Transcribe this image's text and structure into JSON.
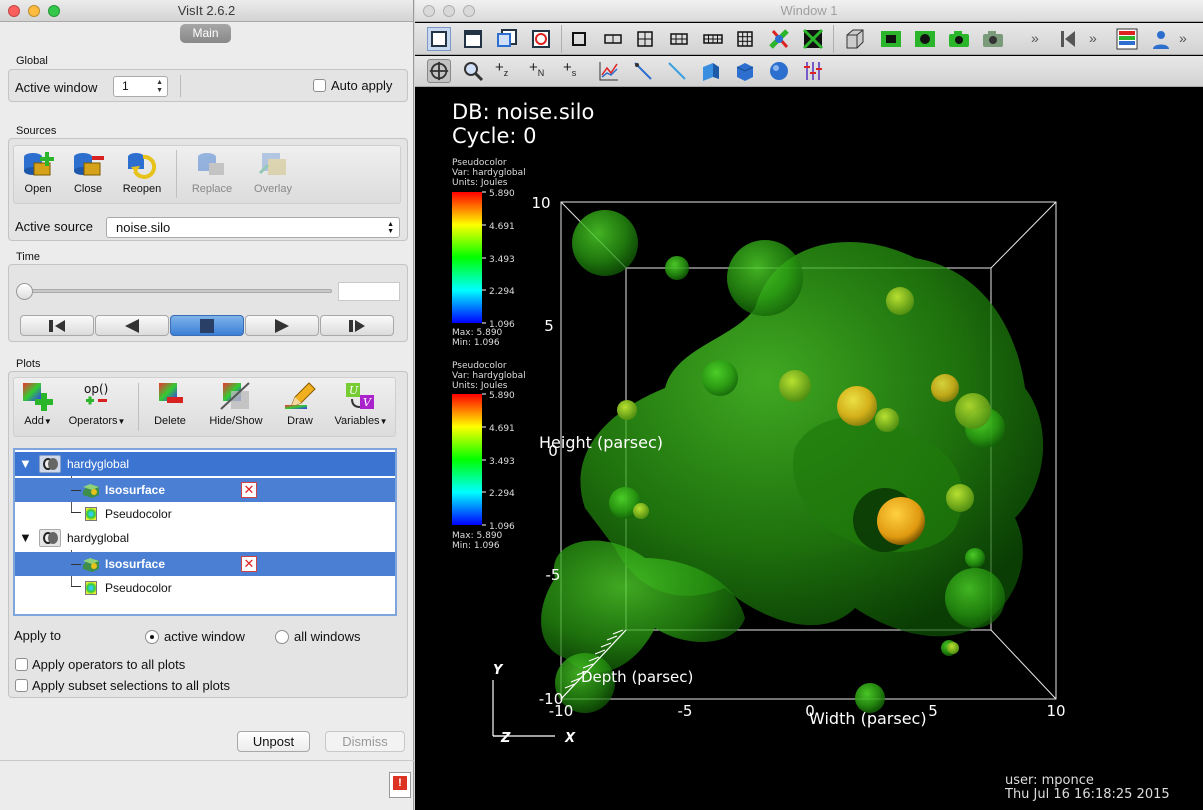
{
  "control_window": {
    "title": "VisIt 2.6.2",
    "tab": "Main",
    "global": {
      "section": "Global",
      "active_window_label": "Active window",
      "active_window_value": "1",
      "auto_apply_label": "Auto apply"
    },
    "sources": {
      "section": "Sources",
      "buttons": [
        "Open",
        "Close",
        "Reopen",
        "Replace",
        "Overlay"
      ],
      "active_source_label": "Active source",
      "active_source_value": "noise.silo"
    },
    "time": {
      "section": "Time",
      "position": 0
    },
    "plots": {
      "section": "Plots",
      "buttons": [
        "Add",
        "Operators",
        "Delete",
        "Hide/Show",
        "Draw",
        "Variables"
      ],
      "list": [
        {
          "plot": "hardyglobal",
          "operator": "Isosurface",
          "sub": "Pseudocolor"
        },
        {
          "plot": "hardyglobal",
          "operator": "Isosurface",
          "sub": "Pseudocolor"
        }
      ]
    },
    "apply": {
      "apply_to_label": "Apply to",
      "active_window": "active window",
      "all_windows": "all windows",
      "apply_operators": "Apply operators to all plots",
      "apply_subset": "Apply subset selections to all plots"
    },
    "unpost_label": "Unpost",
    "dismiss_label": "Dismiss"
  },
  "viewer_window": {
    "title": "Window 1",
    "db_text": "DB: noise.silo",
    "cycle_text": "Cycle: 0",
    "legends": [
      {
        "lines": [
          "Pseudocolor",
          "Var: hardyglobal",
          "Units: Joules"
        ],
        "ticks": [
          "5.890",
          "4.691",
          "3.493",
          "2.294",
          "1.096"
        ],
        "max": "Max:  5.890",
        "min": "Min:  1.096"
      },
      {
        "lines": [
          "Pseudocolor",
          "Var: hardyglobal",
          "Units: Joules"
        ],
        "ticks": [
          "5.890",
          "4.691",
          "3.493",
          "2.294",
          "1.096"
        ],
        "max": "Max:  5.890",
        "min": "Min:  1.096"
      }
    ],
    "axes": {
      "height_label": "Height (parsec)",
      "width_label": "Width (parsec)",
      "depth_label": "Depth (parsec)",
      "y_ticks": [
        "10",
        "5",
        "0",
        "-5",
        "-10"
      ],
      "x_ticks": [
        "-10",
        "-5",
        "0",
        "5",
        "10"
      ],
      "triad_y": "Y",
      "triad_x": "X",
      "triad_z": "Z"
    },
    "user_line": "user: mponce",
    "date_line": "Thu Jul 16 16:18:25 2015"
  },
  "colors": {
    "selection": "#3b74d1",
    "iso_green": "#2fae14",
    "iso_yellow": "#e0c21a"
  }
}
